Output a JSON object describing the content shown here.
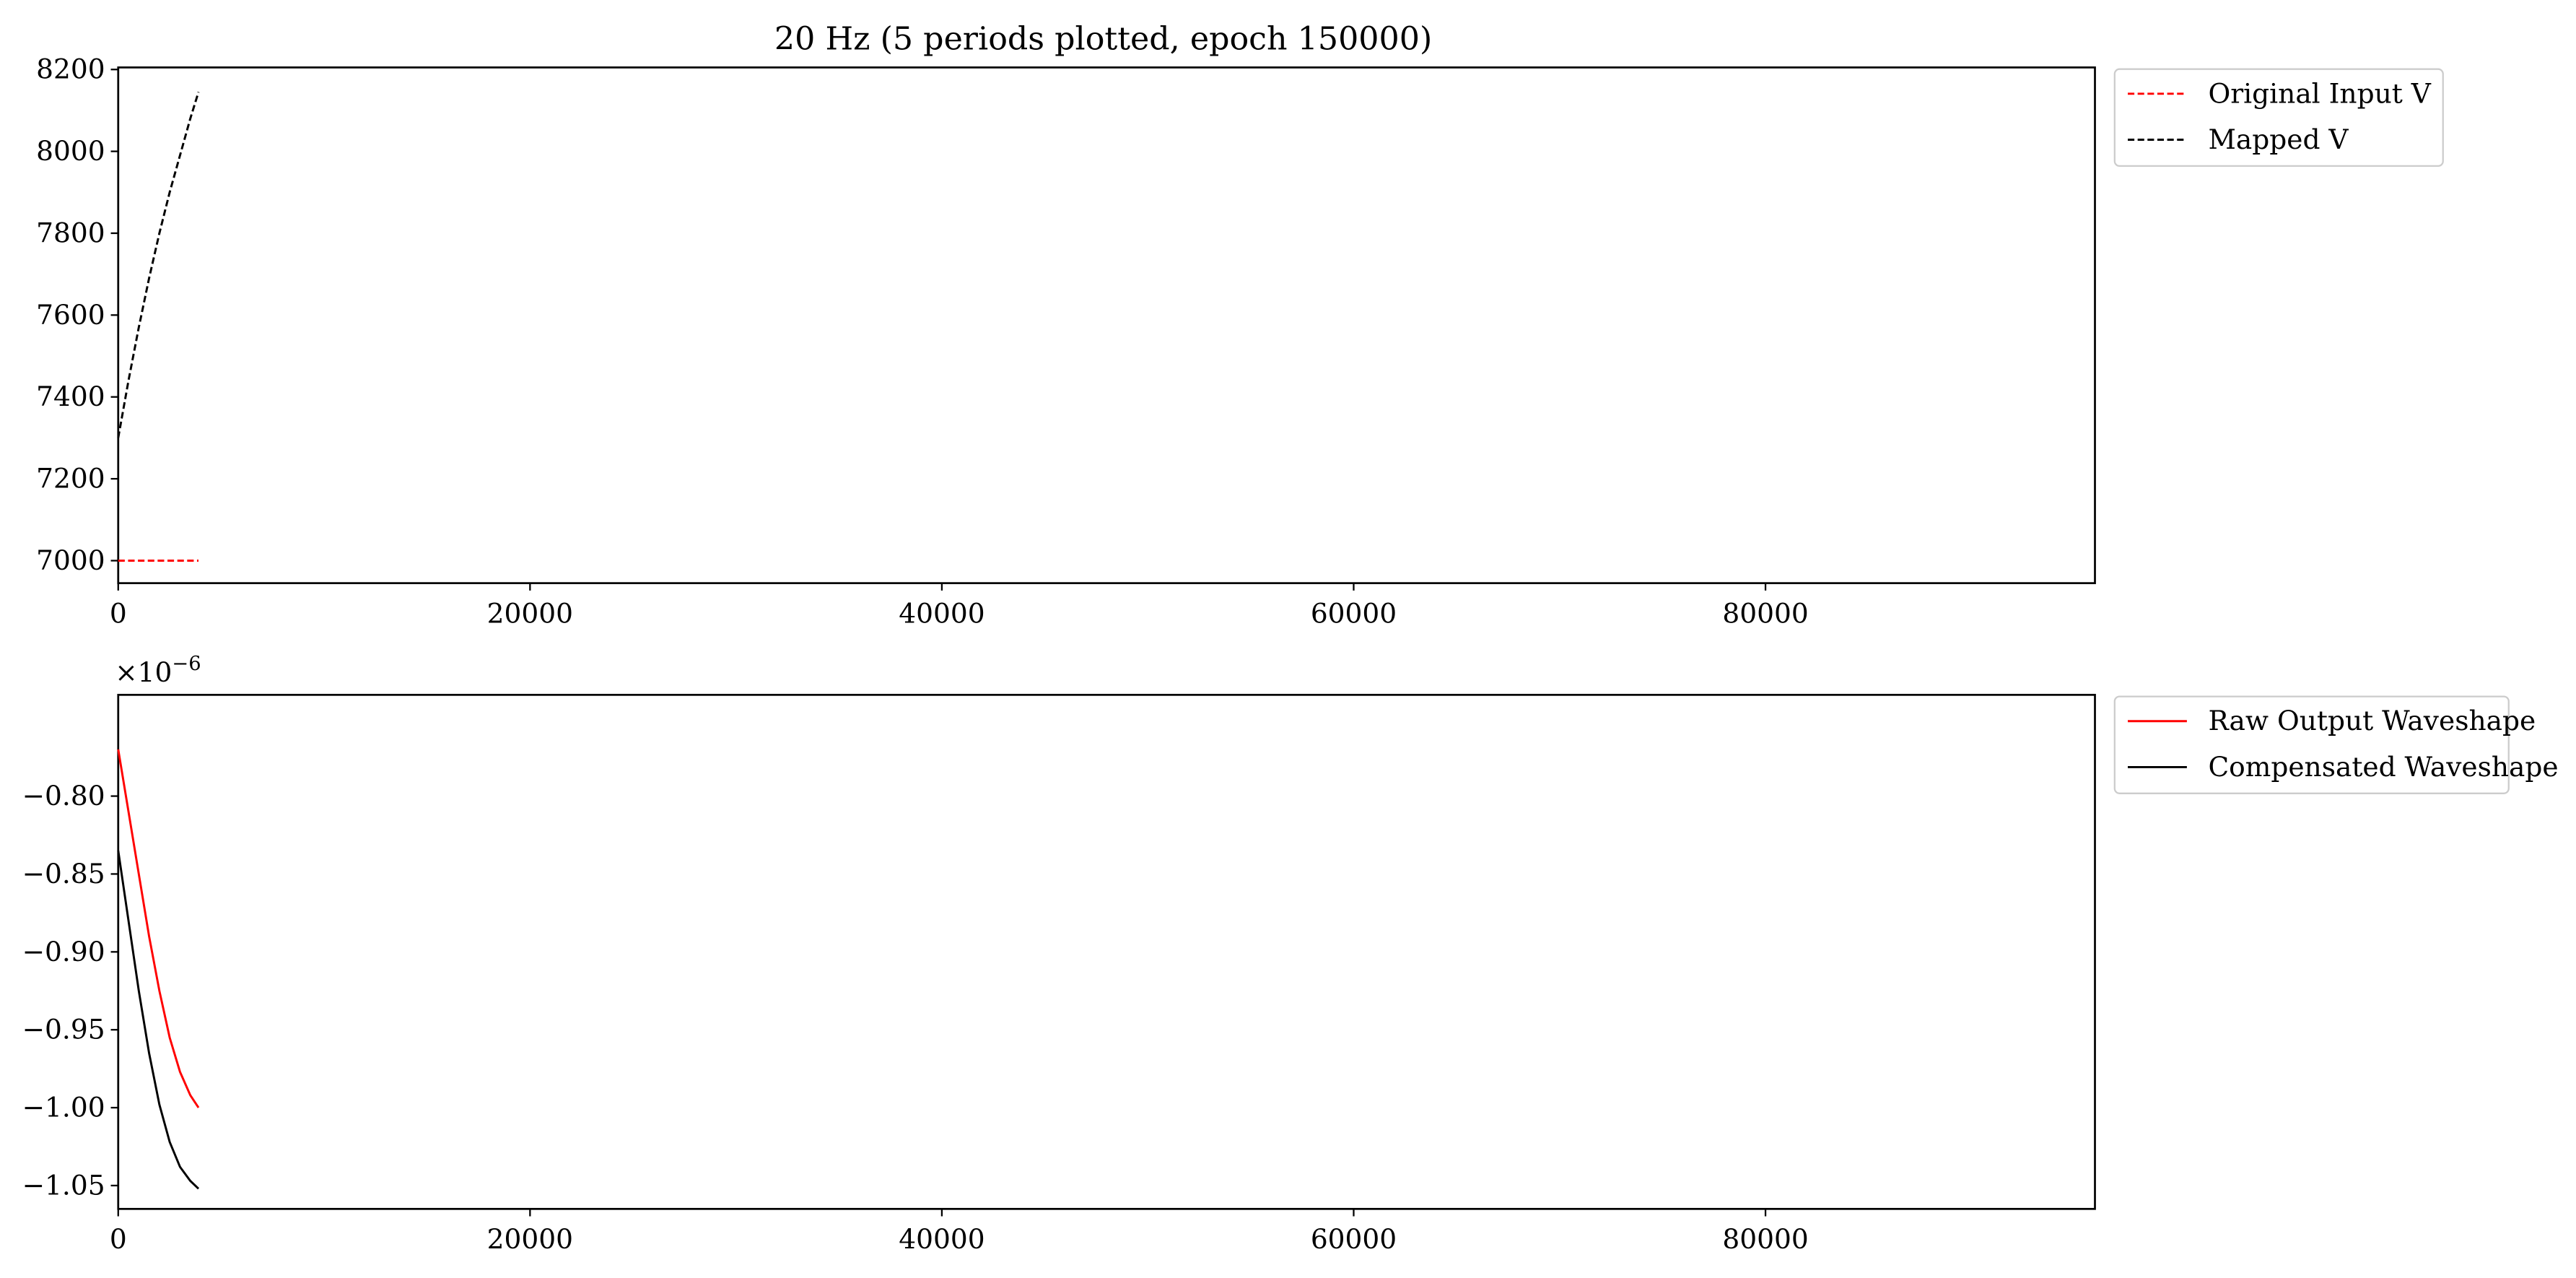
{
  "figure": {
    "title": "20 Hz (5 periods plotted, epoch 150000)"
  },
  "chart_data": [
    {
      "type": "line",
      "title": "20 Hz (5 periods plotted, epoch 150000)",
      "xlabel": "",
      "ylabel": "",
      "xlim": [
        0,
        96000
      ],
      "ylim": [
        6945,
        8205
      ],
      "x_ticks": [
        0,
        20000,
        40000,
        60000,
        80000
      ],
      "y_ticks": [
        7000,
        7200,
        7400,
        7600,
        7800,
        8000,
        8200
      ],
      "x_tick_labels": [
        "0",
        "20000",
        "40000",
        "60000",
        "80000"
      ],
      "y_tick_labels": [
        "7000",
        "7200",
        "7400",
        "7600",
        "7800",
        "8000",
        "8200"
      ],
      "y_offset_label": "",
      "grid": false,
      "legend": "outside upper right",
      "series": [
        {
          "name": "Original Input V",
          "color": "#ff0000",
          "dashed": true,
          "x": [
            0,
            500,
            1000,
            1500,
            2000,
            2500,
            3000,
            3500,
            3900
          ],
          "y": [
            7000,
            7000,
            7000,
            7000,
            7000,
            7000,
            7000,
            7000,
            7000
          ]
        },
        {
          "name": "Mapped V",
          "color": "#000000",
          "dashed": true,
          "x": [
            0,
            500,
            1000,
            1500,
            2000,
            2500,
            3000,
            3500,
            3900
          ],
          "y": [
            7300,
            7440,
            7570,
            7690,
            7800,
            7900,
            7990,
            8080,
            8145
          ]
        }
      ]
    },
    {
      "type": "line",
      "title": "",
      "xlabel": "",
      "ylabel": "",
      "xlim": [
        0,
        96000
      ],
      "ylim": [
        -1.065,
        -0.735
      ],
      "x_ticks": [
        0,
        20000,
        40000,
        60000,
        80000
      ],
      "y_ticks": [
        -1.05,
        -1.0,
        -0.95,
        -0.9,
        -0.85,
        -0.8
      ],
      "x_tick_labels": [
        "0",
        "20000",
        "40000",
        "60000",
        "80000"
      ],
      "y_tick_labels": [
        "−1.05",
        "−1.00",
        "−0.95",
        "−0.90",
        "−0.85",
        "−0.80"
      ],
      "y_offset_label": "×10",
      "y_offset_exponent": "−6",
      "grid": false,
      "legend": "outside upper right",
      "series": [
        {
          "name": "Raw Output Waveshape",
          "color": "#ff0000",
          "dashed": false,
          "x": [
            0,
            500,
            1000,
            1500,
            2000,
            2500,
            3000,
            3500,
            3900
          ],
          "y": [
            -0.77,
            -0.81,
            -0.85,
            -0.89,
            -0.925,
            -0.955,
            -0.977,
            -0.992,
            -1.0
          ]
        },
        {
          "name": "Compensated Waveshape",
          "color": "#000000",
          "dashed": false,
          "x": [
            0,
            500,
            1000,
            1500,
            2000,
            2500,
            3000,
            3500,
            3900
          ],
          "y": [
            -0.835,
            -0.88,
            -0.925,
            -0.965,
            -0.998,
            -1.022,
            -1.038,
            -1.047,
            -1.052
          ]
        }
      ]
    }
  ]
}
